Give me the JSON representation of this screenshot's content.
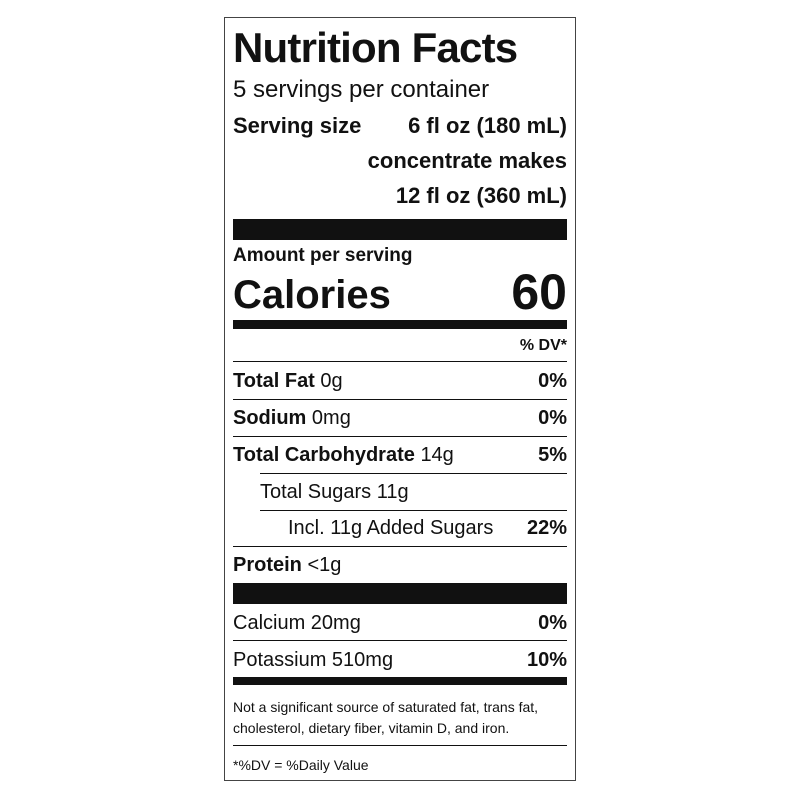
{
  "title": "Nutrition Facts",
  "servings": "5 servings per container",
  "serving_size": {
    "label": "Serving size",
    "value": "6 fl oz (180 mL)"
  },
  "makes": [
    "concentrate makes",
    "12 fl oz (360 mL)"
  ],
  "amount_label": "Amount per serving",
  "calories": {
    "label": "Calories",
    "value": 60
  },
  "dv_header": "% DV*",
  "nutrients": [
    {
      "name": "Total Fat",
      "amount": "0g",
      "dv": "0%"
    },
    {
      "name": "Sodium",
      "amount": "0mg",
      "dv": "0%"
    },
    {
      "name": "Total Carbohydrate",
      "amount": "14g",
      "dv": "5%"
    },
    {
      "name": "Total Sugars 11g"
    },
    {
      "name": "Incl. 11g Added Sugars",
      "dv": "22%"
    },
    {
      "name": "Protein",
      "amount": "<1g"
    }
  ],
  "minerals": [
    {
      "name": "Calcium 20mg",
      "dv": "0%"
    },
    {
      "name": "Potassium 510mg",
      "dv": "10%"
    }
  ],
  "footnote": [
    "Not a significant source of saturated fat, trans fat,",
    "cholesterol, dietary fiber, vitamin D, and iron."
  ],
  "dv_note": "*%DV = %Daily Value"
}
